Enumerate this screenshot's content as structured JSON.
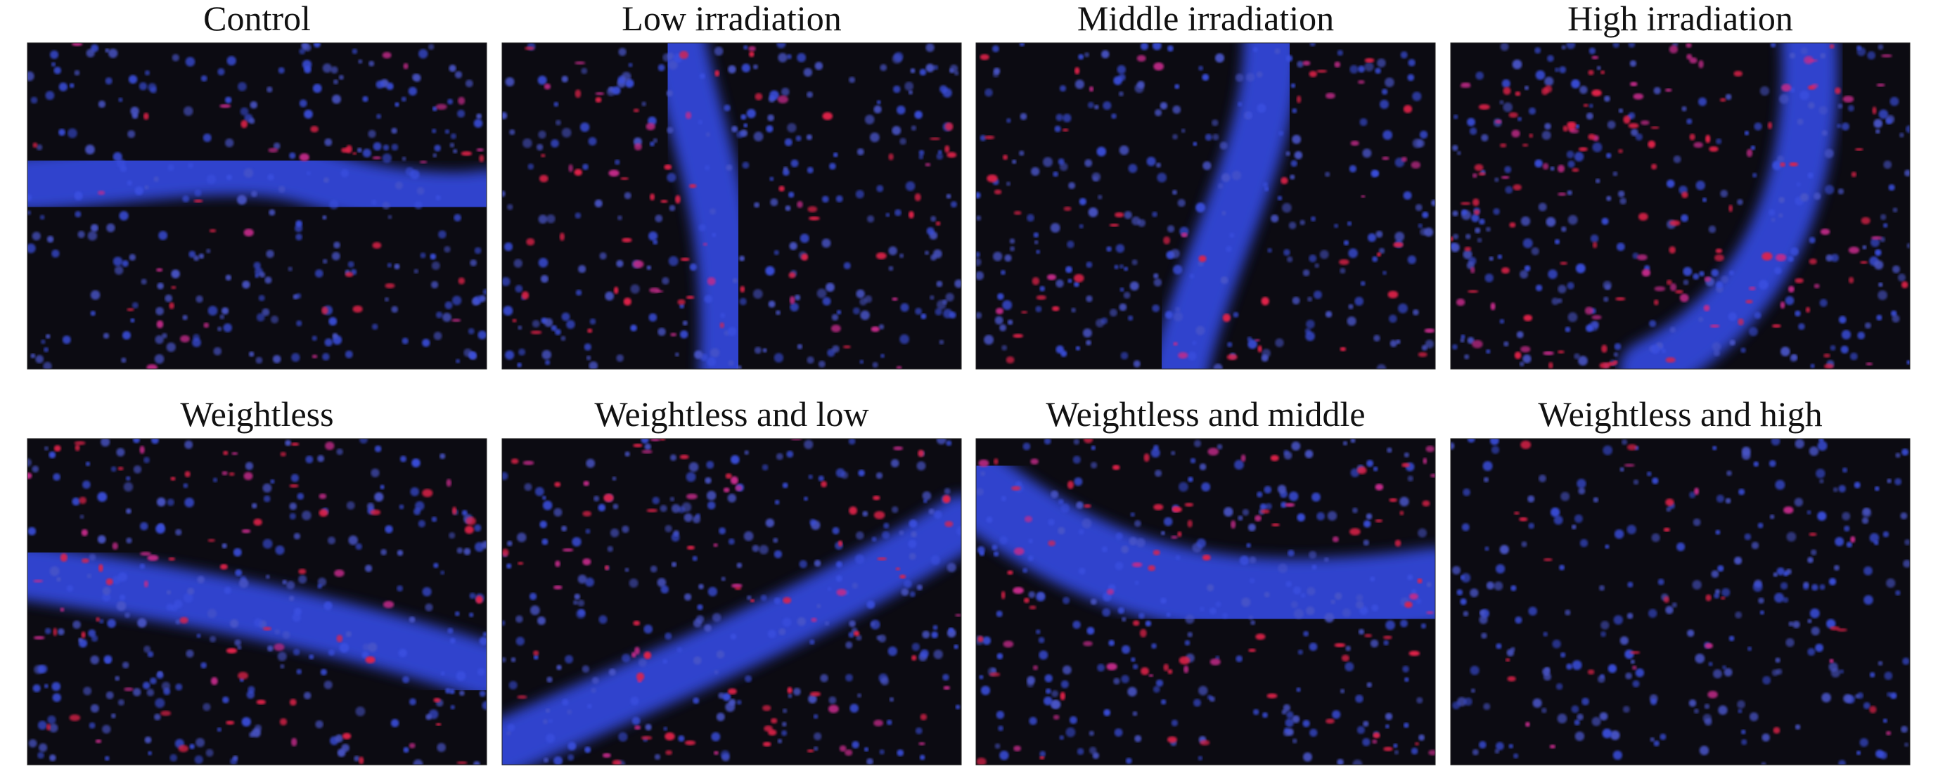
{
  "panels": [
    {
      "title": "Control"
    },
    {
      "title": "Low irradiation"
    },
    {
      "title": "Middle irradiation"
    },
    {
      "title": "High irradiation"
    },
    {
      "title": "Weightless"
    },
    {
      "title": "Weightless and low"
    },
    {
      "title": "Weightless and middle"
    },
    {
      "title": "Weightless and high"
    }
  ]
}
